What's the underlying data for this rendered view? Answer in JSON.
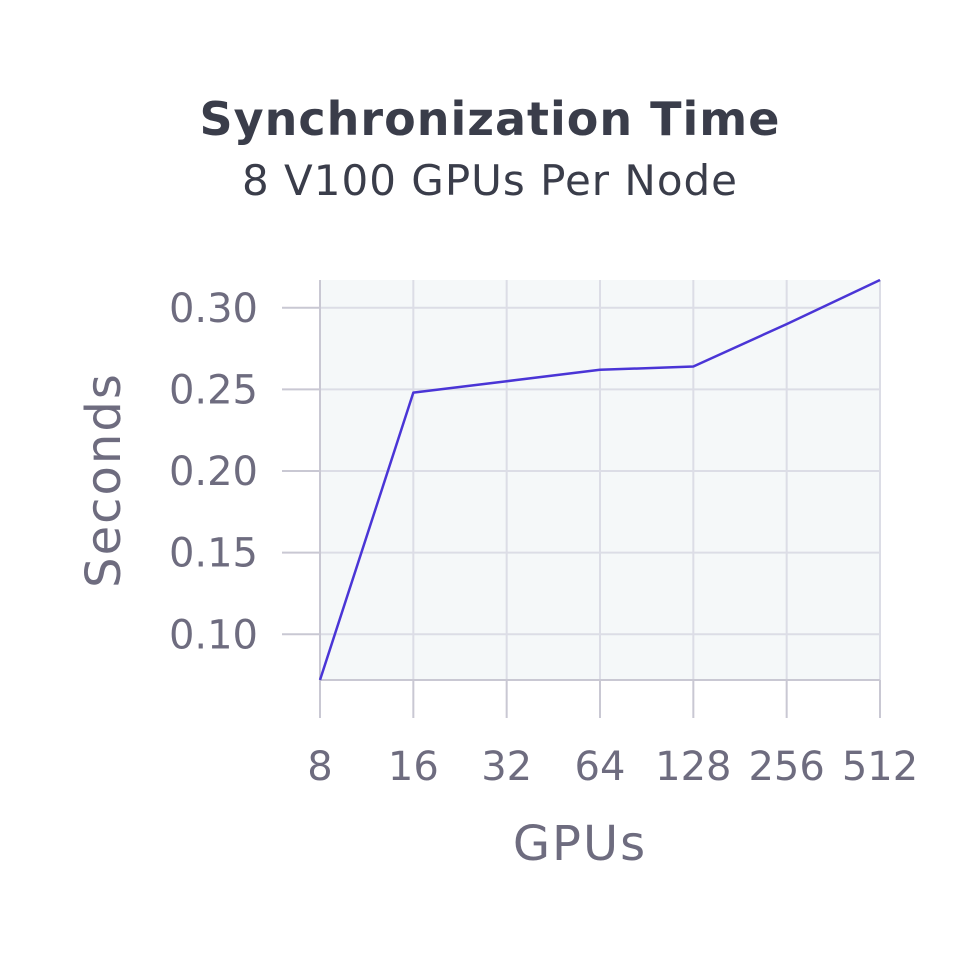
{
  "chart_data": {
    "type": "line",
    "title": "Synchronization Time",
    "subtitle": "8 V100 GPUs Per Node",
    "xlabel": "GPUs",
    "ylabel": "Seconds",
    "x_scale": "log2",
    "categories": [
      "8",
      "16",
      "32",
      "64",
      "128",
      "256",
      "512"
    ],
    "x": [
      8,
      16,
      32,
      64,
      128,
      256,
      512
    ],
    "series": [
      {
        "values": [
          0.072,
          0.248,
          0.255,
          0.262,
          0.264,
          0.29,
          0.317
        ]
      }
    ],
    "yticks": [
      "0.10",
      "0.15",
      "0.20",
      "0.25",
      "0.30"
    ],
    "ytick_values": [
      0.1,
      0.15,
      0.2,
      0.25,
      0.3
    ],
    "ylim": [
      0.072,
      0.317
    ],
    "grid": true,
    "legend": "none",
    "colors": {
      "line": "#4a35d6",
      "plot_bg": "#f5f8f9",
      "grid": "#dcdde6",
      "axis": "#c9c8d3"
    }
  }
}
